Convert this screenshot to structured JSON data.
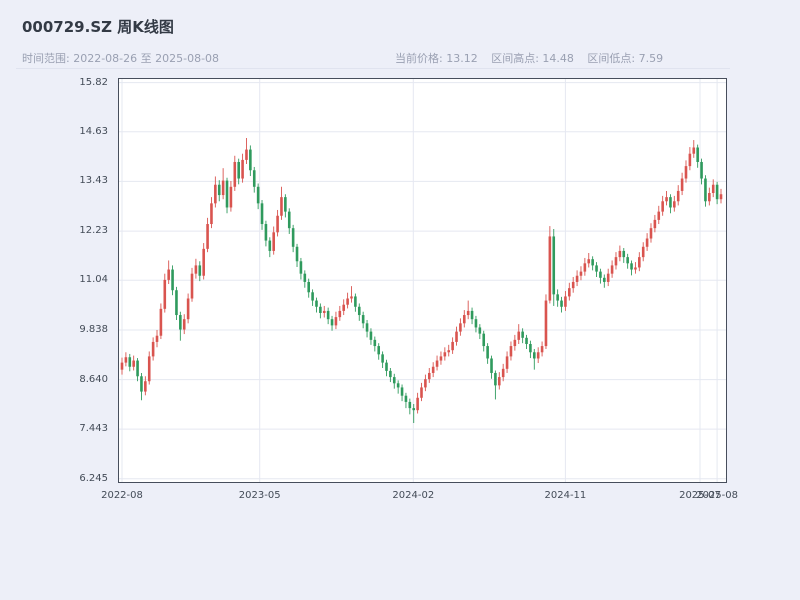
{
  "header": {
    "title": "000729.SZ 周K线图",
    "time_range": "时间范围: 2022-08-26 至 2025-08-08",
    "stats": [
      "当前价格: 13.12",
      "区间高点: 14.48",
      "区间低点: 7.59"
    ]
  },
  "chart_data": {
    "type": "candlestick",
    "symbol": "000729.SZ",
    "interval": "weekly",
    "title": "000729.SZ 周K线图",
    "current_price": 13.12,
    "range_high": 14.48,
    "range_low": 7.59,
    "up_color": "#d9544f",
    "down_color": "#2f9a5d",
    "grid_color": "#e5e8f1",
    "spine_color": "#474e5c",
    "grid": true,
    "ylim": [
      6.14,
      15.93
    ],
    "y_ticks": [
      "15.82",
      "14.63",
      "13.43",
      "12.23",
      "11.04",
      "9.838",
      "8.640",
      "7.443",
      "6.245"
    ],
    "y_tick_values": [
      15.82,
      14.63,
      13.43,
      12.23,
      11.04,
      9.838,
      8.64,
      7.443,
      6.245
    ],
    "x_ticks": [
      {
        "label": "2022-08",
        "week": 0
      },
      {
        "label": "2023-05",
        "week": 35.4
      },
      {
        "label": "2024-02",
        "week": 74.9
      },
      {
        "label": "2024-11",
        "week": 114.0
      },
      {
        "label": "2025-07",
        "week": 148.6
      },
      {
        "label": "2025-08",
        "week": 153.0
      }
    ],
    "candles": [
      [
        "2022-08-26",
        8.88,
        9.17,
        8.76,
        9.05
      ],
      [
        "2022-09-02",
        9.05,
        9.3,
        8.96,
        9.18
      ],
      [
        "2022-09-09",
        9.18,
        9.26,
        8.84,
        8.95
      ],
      [
        "2022-09-16",
        8.95,
        9.22,
        8.86,
        9.1
      ],
      [
        "2022-09-23",
        9.1,
        9.16,
        8.6,
        8.72
      ],
      [
        "2022-09-30",
        8.72,
        8.8,
        8.14,
        8.35
      ],
      [
        "2022-10-07",
        8.35,
        8.72,
        8.26,
        8.6
      ],
      [
        "2022-10-14",
        8.6,
        9.32,
        8.52,
        9.2
      ],
      [
        "2022-10-21",
        9.2,
        9.66,
        9.1,
        9.55
      ],
      [
        "2022-10-28",
        9.55,
        9.84,
        9.42,
        9.7
      ],
      [
        "2022-11-04",
        9.7,
        10.48,
        9.62,
        10.35
      ],
      [
        "2022-11-11",
        10.35,
        11.2,
        10.26,
        11.05
      ],
      [
        "2022-11-18",
        11.05,
        11.52,
        10.95,
        11.3
      ],
      [
        "2022-11-25",
        11.3,
        11.4,
        10.68,
        10.8
      ],
      [
        "2022-12-02",
        10.8,
        10.88,
        10.08,
        10.2
      ],
      [
        "2022-12-09",
        10.2,
        10.28,
        9.58,
        9.85
      ],
      [
        "2022-12-16",
        9.85,
        10.22,
        9.74,
        10.1
      ],
      [
        "2022-12-23",
        10.1,
        10.72,
        10.0,
        10.6
      ],
      [
        "2022-12-30",
        10.6,
        11.34,
        10.52,
        11.2
      ],
      [
        "2023-01-06",
        11.2,
        11.56,
        11.08,
        11.4
      ],
      [
        "2023-01-13",
        11.4,
        11.5,
        11.02,
        11.15
      ],
      [
        "2023-01-20",
        11.15,
        11.94,
        11.06,
        11.8
      ],
      [
        "2023-01-27",
        11.8,
        12.55,
        11.72,
        12.4
      ],
      [
        "2023-02-03",
        12.4,
        13.05,
        12.3,
        12.9
      ],
      [
        "2023-02-10",
        12.9,
        13.55,
        12.8,
        13.35
      ],
      [
        "2023-02-17",
        13.35,
        13.46,
        12.95,
        13.1
      ],
      [
        "2023-02-24",
        13.1,
        13.75,
        13.0,
        13.45
      ],
      [
        "2023-03-03",
        13.45,
        13.52,
        12.66,
        12.8
      ],
      [
        "2023-03-10",
        12.8,
        13.44,
        12.7,
        13.3
      ],
      [
        "2023-03-17",
        13.3,
        14.05,
        13.2,
        13.9
      ],
      [
        "2023-03-24",
        13.9,
        13.98,
        13.36,
        13.5
      ],
      [
        "2023-03-31",
        13.5,
        14.1,
        13.4,
        13.95
      ],
      [
        "2023-04-07",
        13.95,
        14.48,
        13.85,
        14.2
      ],
      [
        "2023-04-14",
        14.2,
        14.3,
        13.56,
        13.7
      ],
      [
        "2023-04-21",
        13.7,
        13.78,
        13.16,
        13.3
      ],
      [
        "2023-04-28",
        13.3,
        13.38,
        12.76,
        12.9
      ],
      [
        "2023-05-05",
        12.9,
        12.98,
        12.26,
        12.4
      ],
      [
        "2023-05-12",
        12.4,
        12.48,
        11.86,
        12.0
      ],
      [
        "2023-05-19",
        12.0,
        12.08,
        11.6,
        11.75
      ],
      [
        "2023-05-26",
        11.75,
        12.34,
        11.66,
        12.2
      ],
      [
        "2023-06-02",
        12.2,
        12.74,
        12.1,
        12.6
      ],
      [
        "2023-06-09",
        12.6,
        13.3,
        12.5,
        13.05
      ],
      [
        "2023-06-16",
        13.05,
        13.12,
        12.56,
        12.7
      ],
      [
        "2023-06-23",
        12.7,
        12.78,
        12.16,
        12.3
      ],
      [
        "2023-06-30",
        12.3,
        12.38,
        11.72,
        11.85
      ],
      [
        "2023-07-07",
        11.85,
        11.92,
        11.36,
        11.5
      ],
      [
        "2023-07-14",
        11.5,
        11.58,
        11.06,
        11.2
      ],
      [
        "2023-07-21",
        11.2,
        11.28,
        10.86,
        11.0
      ],
      [
        "2023-07-28",
        11.0,
        11.08,
        10.62,
        10.75
      ],
      [
        "2023-08-04",
        10.75,
        10.82,
        10.42,
        10.55
      ],
      [
        "2023-08-11",
        10.55,
        10.62,
        10.26,
        10.4
      ],
      [
        "2023-08-18",
        10.4,
        10.48,
        10.12,
        10.25
      ],
      [
        "2023-08-25",
        10.25,
        10.42,
        10.14,
        10.3
      ],
      [
        "2023-09-01",
        10.3,
        10.38,
        9.98,
        10.1
      ],
      [
        "2023-09-08",
        10.1,
        10.18,
        9.82,
        9.95
      ],
      [
        "2023-09-15",
        9.95,
        10.28,
        9.86,
        10.15
      ],
      [
        "2023-09-22",
        10.15,
        10.42,
        10.06,
        10.3
      ],
      [
        "2023-09-29",
        10.3,
        10.58,
        10.2,
        10.45
      ],
      [
        "2023-10-06",
        10.45,
        10.74,
        10.36,
        10.6
      ],
      [
        "2023-10-13",
        10.6,
        10.9,
        10.5,
        10.65
      ],
      [
        "2023-10-20",
        10.65,
        10.72,
        10.28,
        10.4
      ],
      [
        "2023-10-27",
        10.4,
        10.48,
        10.06,
        10.2
      ],
      [
        "2023-11-03",
        10.2,
        10.28,
        9.88,
        10.0
      ],
      [
        "2023-11-10",
        10.0,
        10.08,
        9.66,
        9.8
      ],
      [
        "2023-11-17",
        9.8,
        9.88,
        9.48,
        9.6
      ],
      [
        "2023-11-24",
        9.6,
        9.68,
        9.32,
        9.45
      ],
      [
        "2023-12-01",
        9.45,
        9.52,
        9.12,
        9.25
      ],
      [
        "2023-12-08",
        9.25,
        9.32,
        8.92,
        9.05
      ],
      [
        "2023-12-15",
        9.05,
        9.12,
        8.72,
        8.85
      ],
      [
        "2023-12-22",
        8.85,
        8.92,
        8.58,
        8.7
      ],
      [
        "2023-12-29",
        8.7,
        8.78,
        8.42,
        8.55
      ],
      [
        "2024-01-05",
        8.55,
        8.62,
        8.3,
        8.45
      ],
      [
        "2024-01-12",
        8.45,
        8.52,
        8.12,
        8.25
      ],
      [
        "2024-01-19",
        8.25,
        8.32,
        7.95,
        8.1
      ],
      [
        "2024-01-26",
        8.1,
        8.18,
        7.8,
        7.95
      ],
      [
        "2024-02-02",
        7.95,
        8.05,
        7.59,
        7.9
      ],
      [
        "2024-02-09",
        7.9,
        8.32,
        7.82,
        8.2
      ],
      [
        "2024-02-16",
        8.2,
        8.56,
        8.12,
        8.45
      ],
      [
        "2024-02-23",
        8.45,
        8.76,
        8.36,
        8.65
      ],
      [
        "2024-03-01",
        8.65,
        8.92,
        8.56,
        8.8
      ],
      [
        "2024-03-08",
        8.8,
        9.06,
        8.7,
        8.95
      ],
      [
        "2024-03-15",
        8.95,
        9.22,
        8.86,
        9.1
      ],
      [
        "2024-03-22",
        9.1,
        9.32,
        9.0,
        9.2
      ],
      [
        "2024-03-29",
        9.2,
        9.42,
        9.1,
        9.3
      ],
      [
        "2024-04-05",
        9.3,
        9.48,
        9.2,
        9.35
      ],
      [
        "2024-04-12",
        9.35,
        9.66,
        9.26,
        9.55
      ],
      [
        "2024-04-19",
        9.55,
        9.92,
        9.46,
        9.8
      ],
      [
        "2024-04-26",
        9.8,
        10.12,
        9.7,
        10.0
      ],
      [
        "2024-05-03",
        10.0,
        10.32,
        9.9,
        10.2
      ],
      [
        "2024-05-10",
        10.2,
        10.55,
        10.1,
        10.3
      ],
      [
        "2024-05-17",
        10.3,
        10.38,
        9.98,
        10.1
      ],
      [
        "2024-05-24",
        10.1,
        10.18,
        9.78,
        9.9
      ],
      [
        "2024-05-31",
        9.9,
        9.98,
        9.62,
        9.75
      ],
      [
        "2024-06-07",
        9.75,
        9.82,
        9.32,
        9.45
      ],
      [
        "2024-06-14",
        9.45,
        9.52,
        9.02,
        9.15
      ],
      [
        "2024-06-21",
        9.15,
        9.22,
        8.66,
        8.8
      ],
      [
        "2024-06-28",
        8.8,
        8.86,
        8.16,
        8.5
      ],
      [
        "2024-07-05",
        8.5,
        8.82,
        8.4,
        8.7
      ],
      [
        "2024-07-12",
        8.7,
        9.02,
        8.6,
        8.9
      ],
      [
        "2024-07-19",
        8.9,
        9.32,
        8.8,
        9.2
      ],
      [
        "2024-07-26",
        9.2,
        9.56,
        9.1,
        9.45
      ],
      [
        "2024-08-02",
        9.45,
        9.72,
        9.34,
        9.6
      ],
      [
        "2024-08-09",
        9.6,
        9.98,
        9.5,
        9.8
      ],
      [
        "2024-08-16",
        9.8,
        9.88,
        9.52,
        9.65
      ],
      [
        "2024-08-23",
        9.65,
        9.72,
        9.38,
        9.5
      ],
      [
        "2024-08-30",
        9.5,
        9.58,
        9.16,
        9.3
      ],
      [
        "2024-09-06",
        9.3,
        9.38,
        8.88,
        9.15
      ],
      [
        "2024-09-13",
        9.15,
        9.42,
        9.04,
        9.3
      ],
      [
        "2024-09-20",
        9.3,
        9.56,
        9.2,
        9.45
      ],
      [
        "2024-09-27",
        9.45,
        10.7,
        9.38,
        10.55
      ],
      [
        "2024-10-04",
        10.55,
        12.35,
        10.48,
        12.1
      ],
      [
        "2024-10-11",
        12.1,
        12.28,
        10.42,
        10.7
      ],
      [
        "2024-10-18",
        10.7,
        10.82,
        10.4,
        10.55
      ],
      [
        "2024-10-25",
        10.55,
        10.64,
        10.26,
        10.4
      ],
      [
        "2024-11-01",
        10.4,
        10.78,
        10.3,
        10.65
      ],
      [
        "2024-11-08",
        10.65,
        10.98,
        10.55,
        10.85
      ],
      [
        "2024-11-15",
        10.85,
        11.12,
        10.74,
        11.0
      ],
      [
        "2024-11-22",
        11.0,
        11.28,
        10.9,
        11.15
      ],
      [
        "2024-11-29",
        11.15,
        11.38,
        11.04,
        11.25
      ],
      [
        "2024-12-06",
        11.25,
        11.58,
        11.15,
        11.45
      ],
      [
        "2024-12-13",
        11.45,
        11.7,
        11.35,
        11.55
      ],
      [
        "2024-12-20",
        11.55,
        11.62,
        11.28,
        11.4
      ],
      [
        "2024-12-27",
        11.4,
        11.48,
        11.12,
        11.25
      ],
      [
        "2025-01-03",
        11.25,
        11.32,
        10.96,
        11.1
      ],
      [
        "2025-01-10",
        11.1,
        11.18,
        10.86,
        11.0
      ],
      [
        "2025-01-17",
        11.0,
        11.32,
        10.9,
        11.2
      ],
      [
        "2025-01-24",
        11.2,
        11.52,
        11.1,
        11.4
      ],
      [
        "2025-01-31",
        11.4,
        11.72,
        11.3,
        11.6
      ],
      [
        "2025-02-07",
        11.6,
        11.88,
        11.5,
        11.75
      ],
      [
        "2025-02-14",
        11.75,
        11.82,
        11.46,
        11.6
      ],
      [
        "2025-02-21",
        11.6,
        11.68,
        11.32,
        11.45
      ],
      [
        "2025-02-28",
        11.45,
        11.52,
        11.16,
        11.3
      ],
      [
        "2025-03-07",
        11.3,
        11.48,
        11.2,
        11.35
      ],
      [
        "2025-03-14",
        11.35,
        11.72,
        11.26,
        11.6
      ],
      [
        "2025-03-21",
        11.6,
        11.96,
        11.5,
        11.85
      ],
      [
        "2025-03-28",
        11.85,
        12.18,
        11.75,
        12.05
      ],
      [
        "2025-04-04",
        12.05,
        12.42,
        11.95,
        12.3
      ],
      [
        "2025-04-11",
        12.3,
        12.62,
        12.2,
        12.5
      ],
      [
        "2025-04-18",
        12.5,
        12.84,
        12.4,
        12.7
      ],
      [
        "2025-04-25",
        12.7,
        13.08,
        12.6,
        12.95
      ],
      [
        "2025-05-02",
        12.95,
        13.2,
        12.85,
        13.05
      ],
      [
        "2025-05-09",
        13.05,
        13.12,
        12.66,
        12.8
      ],
      [
        "2025-05-16",
        12.8,
        13.08,
        12.7,
        12.95
      ],
      [
        "2025-05-23",
        12.95,
        13.34,
        12.85,
        13.2
      ],
      [
        "2025-05-30",
        13.2,
        13.64,
        13.1,
        13.5
      ],
      [
        "2025-06-06",
        13.5,
        13.94,
        13.4,
        13.8
      ],
      [
        "2025-06-13",
        13.8,
        14.26,
        13.7,
        14.1
      ],
      [
        "2025-06-20",
        14.1,
        14.43,
        14.0,
        14.25
      ],
      [
        "2025-06-27",
        14.25,
        14.32,
        13.76,
        13.9
      ],
      [
        "2025-07-04",
        13.9,
        13.98,
        13.36,
        13.5
      ],
      [
        "2025-07-11",
        13.5,
        13.58,
        12.82,
        12.95
      ],
      [
        "2025-07-18",
        12.95,
        13.28,
        12.85,
        13.15
      ],
      [
        "2025-07-25",
        13.15,
        13.48,
        13.05,
        13.35
      ],
      [
        "2025-08-01",
        13.35,
        13.42,
        12.88,
        13.0
      ],
      [
        "2025-08-08",
        13.0,
        13.25,
        12.9,
        13.12
      ]
    ]
  }
}
